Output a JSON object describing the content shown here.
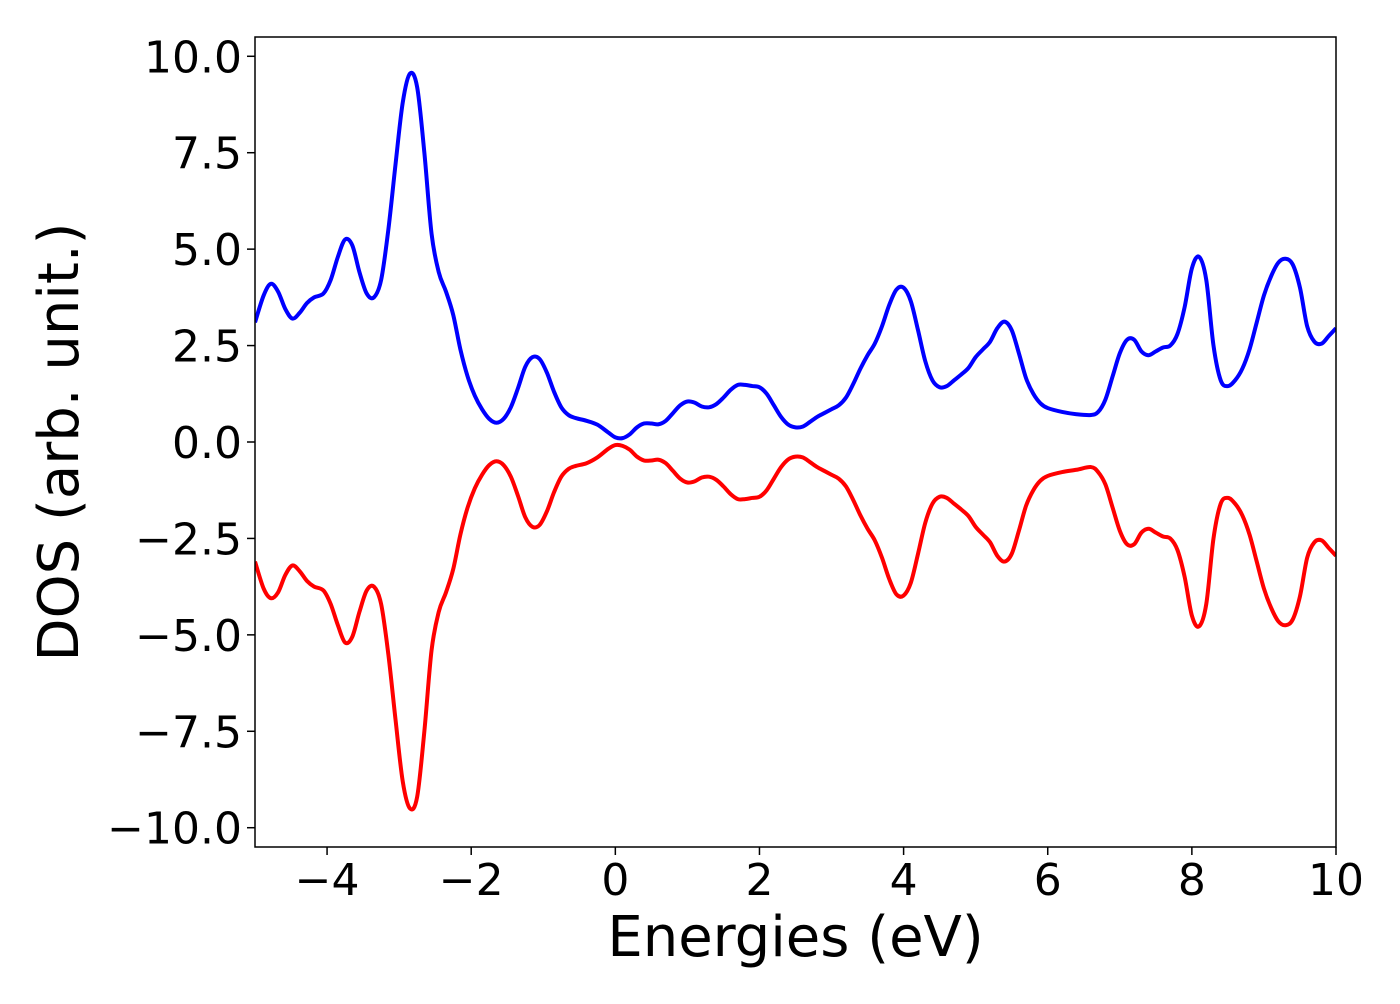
{
  "chart_data": {
    "type": "line",
    "title": "",
    "xlabel": "Energies (eV)",
    "ylabel": "DOS (arb. unit.)",
    "xlim": [
      -5,
      10
    ],
    "ylim": [
      -10.5,
      10.5
    ],
    "grid": false,
    "legend": "none",
    "x_ticks": [
      {
        "value": -4,
        "label": "−4"
      },
      {
        "value": -2,
        "label": "−2"
      },
      {
        "value": 0,
        "label": "0"
      },
      {
        "value": 2,
        "label": "2"
      },
      {
        "value": 4,
        "label": "4"
      },
      {
        "value": 6,
        "label": "6"
      },
      {
        "value": 8,
        "label": "8"
      },
      {
        "value": 10,
        "label": "10"
      }
    ],
    "y_ticks": [
      {
        "value": 10,
        "label": "10.0"
      },
      {
        "value": 7.5,
        "label": "7.5"
      },
      {
        "value": 5,
        "label": "5.0"
      },
      {
        "value": 2.5,
        "label": "2.5"
      },
      {
        "value": 0,
        "label": "0.0"
      },
      {
        "value": -2.5,
        "label": "−2.5"
      },
      {
        "value": -5,
        "label": "−5.0"
      },
      {
        "value": -7.5,
        "label": "−7.5"
      },
      {
        "value": -10,
        "label": "−10.0"
      }
    ],
    "series": [
      {
        "color": "#0000ff",
        "points": [
          [
            -5.0,
            3.1
          ],
          [
            -4.88,
            3.8
          ],
          [
            -4.78,
            4.1
          ],
          [
            -4.68,
            3.9
          ],
          [
            -4.58,
            3.45
          ],
          [
            -4.48,
            3.2
          ],
          [
            -4.38,
            3.35
          ],
          [
            -4.28,
            3.6
          ],
          [
            -4.18,
            3.75
          ],
          [
            -4.05,
            3.85
          ],
          [
            -3.95,
            4.2
          ],
          [
            -3.85,
            4.8
          ],
          [
            -3.75,
            5.25
          ],
          [
            -3.65,
            5.1
          ],
          [
            -3.55,
            4.4
          ],
          [
            -3.45,
            3.85
          ],
          [
            -3.35,
            3.75
          ],
          [
            -3.25,
            4.2
          ],
          [
            -3.15,
            5.5
          ],
          [
            -3.05,
            7.2
          ],
          [
            -2.95,
            8.8
          ],
          [
            -2.85,
            9.55
          ],
          [
            -2.75,
            9.2
          ],
          [
            -2.65,
            7.5
          ],
          [
            -2.55,
            5.4
          ],
          [
            -2.45,
            4.4
          ],
          [
            -2.35,
            3.9
          ],
          [
            -2.25,
            3.3
          ],
          [
            -2.15,
            2.4
          ],
          [
            -2.05,
            1.7
          ],
          [
            -1.95,
            1.2
          ],
          [
            -1.85,
            0.85
          ],
          [
            -1.75,
            0.6
          ],
          [
            -1.65,
            0.5
          ],
          [
            -1.55,
            0.6
          ],
          [
            -1.45,
            0.9
          ],
          [
            -1.35,
            1.4
          ],
          [
            -1.25,
            1.95
          ],
          [
            -1.15,
            2.2
          ],
          [
            -1.05,
            2.15
          ],
          [
            -0.95,
            1.8
          ],
          [
            -0.85,
            1.3
          ],
          [
            -0.75,
            0.9
          ],
          [
            -0.65,
            0.7
          ],
          [
            -0.55,
            0.62
          ],
          [
            -0.4,
            0.55
          ],
          [
            -0.25,
            0.45
          ],
          [
            -0.1,
            0.25
          ],
          [
            0.0,
            0.12
          ],
          [
            0.1,
            0.1
          ],
          [
            0.2,
            0.2
          ],
          [
            0.3,
            0.38
          ],
          [
            0.4,
            0.48
          ],
          [
            0.5,
            0.48
          ],
          [
            0.6,
            0.46
          ],
          [
            0.7,
            0.55
          ],
          [
            0.8,
            0.75
          ],
          [
            0.9,
            0.95
          ],
          [
            1.0,
            1.05
          ],
          [
            1.1,
            1.02
          ],
          [
            1.2,
            0.92
          ],
          [
            1.3,
            0.9
          ],
          [
            1.4,
            0.98
          ],
          [
            1.5,
            1.15
          ],
          [
            1.6,
            1.35
          ],
          [
            1.7,
            1.48
          ],
          [
            1.8,
            1.48
          ],
          [
            1.9,
            1.45
          ],
          [
            2.0,
            1.42
          ],
          [
            2.1,
            1.25
          ],
          [
            2.2,
            0.95
          ],
          [
            2.3,
            0.65
          ],
          [
            2.4,
            0.45
          ],
          [
            2.5,
            0.38
          ],
          [
            2.6,
            0.4
          ],
          [
            2.7,
            0.52
          ],
          [
            2.8,
            0.65
          ],
          [
            2.9,
            0.75
          ],
          [
            3.0,
            0.85
          ],
          [
            3.1,
            0.95
          ],
          [
            3.2,
            1.15
          ],
          [
            3.3,
            1.5
          ],
          [
            3.4,
            1.9
          ],
          [
            3.5,
            2.25
          ],
          [
            3.6,
            2.55
          ],
          [
            3.7,
            3.0
          ],
          [
            3.8,
            3.55
          ],
          [
            3.9,
            3.95
          ],
          [
            4.0,
            4.0
          ],
          [
            4.1,
            3.65
          ],
          [
            4.2,
            2.9
          ],
          [
            4.3,
            2.1
          ],
          [
            4.4,
            1.6
          ],
          [
            4.5,
            1.42
          ],
          [
            4.6,
            1.45
          ],
          [
            4.7,
            1.6
          ],
          [
            4.8,
            1.75
          ],
          [
            4.9,
            1.92
          ],
          [
            5.0,
            2.2
          ],
          [
            5.1,
            2.4
          ],
          [
            5.2,
            2.6
          ],
          [
            5.3,
            2.95
          ],
          [
            5.4,
            3.12
          ],
          [
            5.5,
            2.9
          ],
          [
            5.6,
            2.3
          ],
          [
            5.7,
            1.65
          ],
          [
            5.8,
            1.25
          ],
          [
            5.9,
            1.0
          ],
          [
            6.0,
            0.88
          ],
          [
            6.2,
            0.78
          ],
          [
            6.4,
            0.72
          ],
          [
            6.6,
            0.7
          ],
          [
            6.7,
            0.78
          ],
          [
            6.8,
            1.1
          ],
          [
            6.9,
            1.7
          ],
          [
            7.0,
            2.3
          ],
          [
            7.1,
            2.65
          ],
          [
            7.2,
            2.65
          ],
          [
            7.3,
            2.35
          ],
          [
            7.4,
            2.25
          ],
          [
            7.5,
            2.35
          ],
          [
            7.6,
            2.45
          ],
          [
            7.7,
            2.5
          ],
          [
            7.8,
            2.8
          ],
          [
            7.9,
            3.5
          ],
          [
            8.0,
            4.5
          ],
          [
            8.1,
            4.8
          ],
          [
            8.2,
            4.2
          ],
          [
            8.3,
            2.5
          ],
          [
            8.4,
            1.6
          ],
          [
            8.5,
            1.45
          ],
          [
            8.6,
            1.6
          ],
          [
            8.7,
            1.9
          ],
          [
            8.8,
            2.4
          ],
          [
            8.9,
            3.1
          ],
          [
            9.0,
            3.8
          ],
          [
            9.1,
            4.3
          ],
          [
            9.2,
            4.65
          ],
          [
            9.3,
            4.75
          ],
          [
            9.4,
            4.6
          ],
          [
            9.5,
            4.0
          ],
          [
            9.6,
            3.0
          ],
          [
            9.7,
            2.6
          ],
          [
            9.8,
            2.55
          ],
          [
            9.9,
            2.75
          ],
          [
            10.0,
            2.95
          ]
        ]
      },
      {
        "color": "#ff0000",
        "points": [
          [
            -5.0,
            -3.1
          ],
          [
            -4.88,
            -3.8
          ],
          [
            -4.78,
            -4.05
          ],
          [
            -4.68,
            -3.9
          ],
          [
            -4.58,
            -3.45
          ],
          [
            -4.48,
            -3.2
          ],
          [
            -4.38,
            -3.35
          ],
          [
            -4.28,
            -3.6
          ],
          [
            -4.18,
            -3.75
          ],
          [
            -4.05,
            -3.85
          ],
          [
            -3.95,
            -4.2
          ],
          [
            -3.85,
            -4.75
          ],
          [
            -3.75,
            -5.2
          ],
          [
            -3.65,
            -5.05
          ],
          [
            -3.55,
            -4.4
          ],
          [
            -3.45,
            -3.85
          ],
          [
            -3.35,
            -3.75
          ],
          [
            -3.25,
            -4.2
          ],
          [
            -3.15,
            -5.5
          ],
          [
            -3.05,
            -7.2
          ],
          [
            -2.95,
            -8.8
          ],
          [
            -2.85,
            -9.5
          ],
          [
            -2.75,
            -9.2
          ],
          [
            -2.65,
            -7.5
          ],
          [
            -2.55,
            -5.4
          ],
          [
            -2.45,
            -4.4
          ],
          [
            -2.35,
            -3.9
          ],
          [
            -2.25,
            -3.3
          ],
          [
            -2.15,
            -2.4
          ],
          [
            -2.05,
            -1.7
          ],
          [
            -1.95,
            -1.2
          ],
          [
            -1.85,
            -0.85
          ],
          [
            -1.75,
            -0.6
          ],
          [
            -1.65,
            -0.5
          ],
          [
            -1.55,
            -0.6
          ],
          [
            -1.45,
            -0.9
          ],
          [
            -1.35,
            -1.4
          ],
          [
            -1.25,
            -1.95
          ],
          [
            -1.15,
            -2.2
          ],
          [
            -1.05,
            -2.15
          ],
          [
            -0.95,
            -1.8
          ],
          [
            -0.85,
            -1.3
          ],
          [
            -0.75,
            -0.9
          ],
          [
            -0.65,
            -0.7
          ],
          [
            -0.55,
            -0.62
          ],
          [
            -0.4,
            -0.55
          ],
          [
            -0.25,
            -0.4
          ],
          [
            -0.1,
            -0.18
          ],
          [
            0.0,
            -0.08
          ],
          [
            0.1,
            -0.1
          ],
          [
            0.2,
            -0.2
          ],
          [
            0.3,
            -0.38
          ],
          [
            0.4,
            -0.48
          ],
          [
            0.5,
            -0.48
          ],
          [
            0.6,
            -0.46
          ],
          [
            0.7,
            -0.55
          ],
          [
            0.8,
            -0.75
          ],
          [
            0.9,
            -0.95
          ],
          [
            1.0,
            -1.05
          ],
          [
            1.1,
            -1.02
          ],
          [
            1.2,
            -0.92
          ],
          [
            1.3,
            -0.9
          ],
          [
            1.4,
            -0.98
          ],
          [
            1.5,
            -1.15
          ],
          [
            1.6,
            -1.35
          ],
          [
            1.7,
            -1.48
          ],
          [
            1.8,
            -1.48
          ],
          [
            1.9,
            -1.45
          ],
          [
            2.0,
            -1.42
          ],
          [
            2.1,
            -1.25
          ],
          [
            2.2,
            -0.95
          ],
          [
            2.3,
            -0.65
          ],
          [
            2.4,
            -0.45
          ],
          [
            2.5,
            -0.38
          ],
          [
            2.6,
            -0.4
          ],
          [
            2.7,
            -0.52
          ],
          [
            2.8,
            -0.65
          ],
          [
            2.9,
            -0.75
          ],
          [
            3.0,
            -0.85
          ],
          [
            3.1,
            -0.95
          ],
          [
            3.2,
            -1.15
          ],
          [
            3.3,
            -1.5
          ],
          [
            3.4,
            -1.9
          ],
          [
            3.5,
            -2.25
          ],
          [
            3.6,
            -2.55
          ],
          [
            3.7,
            -3.0
          ],
          [
            3.8,
            -3.55
          ],
          [
            3.9,
            -3.95
          ],
          [
            4.0,
            -3.98
          ],
          [
            4.1,
            -3.65
          ],
          [
            4.2,
            -2.9
          ],
          [
            4.3,
            -2.1
          ],
          [
            4.4,
            -1.6
          ],
          [
            4.5,
            -1.42
          ],
          [
            4.6,
            -1.45
          ],
          [
            4.7,
            -1.6
          ],
          [
            4.8,
            -1.75
          ],
          [
            4.9,
            -1.92
          ],
          [
            5.0,
            -2.2
          ],
          [
            5.1,
            -2.4
          ],
          [
            5.2,
            -2.6
          ],
          [
            5.3,
            -2.95
          ],
          [
            5.4,
            -3.1
          ],
          [
            5.5,
            -2.9
          ],
          [
            5.6,
            -2.3
          ],
          [
            5.7,
            -1.65
          ],
          [
            5.8,
            -1.25
          ],
          [
            5.9,
            -1.0
          ],
          [
            6.0,
            -0.88
          ],
          [
            6.2,
            -0.78
          ],
          [
            6.4,
            -0.72
          ],
          [
            6.6,
            -0.65
          ],
          [
            6.7,
            -0.78
          ],
          [
            6.8,
            -1.1
          ],
          [
            6.9,
            -1.7
          ],
          [
            7.0,
            -2.3
          ],
          [
            7.1,
            -2.65
          ],
          [
            7.2,
            -2.65
          ],
          [
            7.3,
            -2.35
          ],
          [
            7.4,
            -2.25
          ],
          [
            7.5,
            -2.35
          ],
          [
            7.6,
            -2.45
          ],
          [
            7.7,
            -2.5
          ],
          [
            7.8,
            -2.8
          ],
          [
            7.9,
            -3.5
          ],
          [
            8.0,
            -4.5
          ],
          [
            8.1,
            -4.78
          ],
          [
            8.2,
            -4.2
          ],
          [
            8.3,
            -2.5
          ],
          [
            8.4,
            -1.6
          ],
          [
            8.5,
            -1.45
          ],
          [
            8.6,
            -1.6
          ],
          [
            8.7,
            -1.9
          ],
          [
            8.8,
            -2.4
          ],
          [
            8.9,
            -3.1
          ],
          [
            9.0,
            -3.8
          ],
          [
            9.1,
            -4.3
          ],
          [
            9.2,
            -4.65
          ],
          [
            9.3,
            -4.75
          ],
          [
            9.4,
            -4.6
          ],
          [
            9.5,
            -4.0
          ],
          [
            9.6,
            -3.0
          ],
          [
            9.7,
            -2.6
          ],
          [
            9.8,
            -2.55
          ],
          [
            9.9,
            -2.75
          ],
          [
            10.0,
            -2.95
          ]
        ]
      }
    ]
  }
}
